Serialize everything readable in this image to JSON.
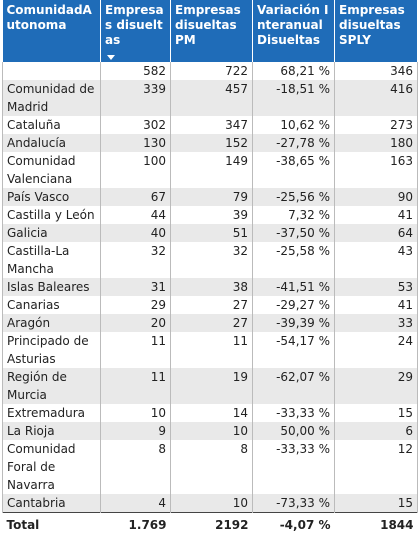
{
  "table": {
    "header": [
      "ComunidadAutonoma",
      "Empresas disueltas",
      "Empresas disueltas PM",
      "Variación Interanual Disueltas",
      "Empresas disueltas SPLY"
    ],
    "summary_row": [
      "582",
      "722",
      "68,21 %",
      "346"
    ],
    "rows": [
      [
        "Comunidad de Madrid",
        "339",
        "457",
        "-18,51 %",
        "416"
      ],
      [
        "Cataluña",
        "302",
        "347",
        "10,62 %",
        "273"
      ],
      [
        "Andalucía",
        "130",
        "152",
        "-27,78 %",
        "180"
      ],
      [
        "Comunidad Valenciana",
        "100",
        "149",
        "-38,65 %",
        "163"
      ],
      [
        "País Vasco",
        "67",
        "79",
        "-25,56 %",
        "90"
      ],
      [
        "Castilla y León",
        "44",
        "39",
        "7,32 %",
        "41"
      ],
      [
        "Galicia",
        "40",
        "51",
        "-37,50 %",
        "64"
      ],
      [
        "Castilla-La Mancha",
        "32",
        "32",
        "-25,58 %",
        "43"
      ],
      [
        "Islas Baleares",
        "31",
        "38",
        "-41,51 %",
        "53"
      ],
      [
        "Canarias",
        "29",
        "27",
        "-29,27 %",
        "41"
      ],
      [
        "Aragón",
        "20",
        "27",
        "-39,39 %",
        "33"
      ],
      [
        "Principado de Asturias",
        "11",
        "11",
        "-54,17 %",
        "24"
      ],
      [
        "Región de Murcia",
        "11",
        "19",
        "-62,07 %",
        "29"
      ],
      [
        "Extremadura",
        "10",
        "14",
        "-33,33 %",
        "15"
      ],
      [
        "La Rioja",
        "9",
        "10",
        "50,00 %",
        "6"
      ],
      [
        "Comunidad Foral de Navarra",
        "8",
        "8",
        "-33,33 %",
        "12"
      ],
      [
        "Cantabria",
        "4",
        "10",
        "-73,33 %",
        "15"
      ]
    ],
    "total_row": [
      "Total",
      "1.769",
      "2192",
      "-4,07 %",
      "1844"
    ]
  }
}
